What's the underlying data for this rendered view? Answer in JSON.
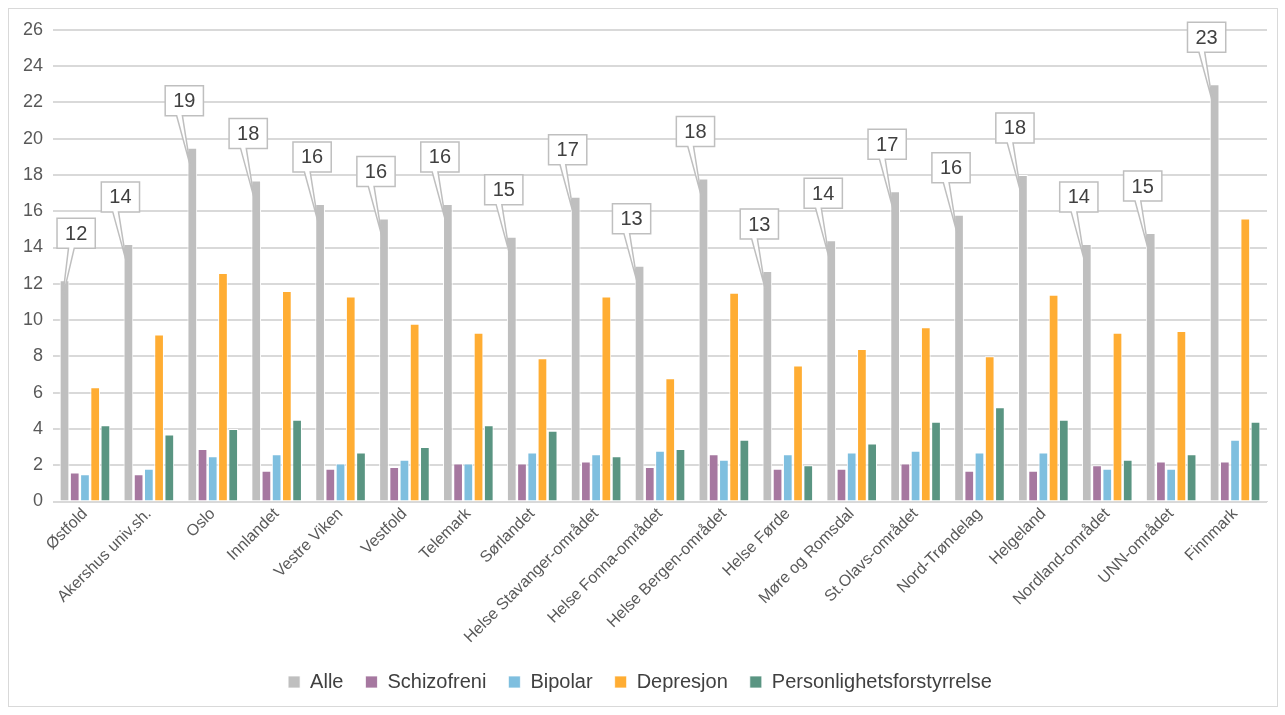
{
  "chart_data": {
    "type": "bar",
    "categories": [
      "Østfold",
      "Akershus univ.sh.",
      "Oslo",
      "Innlandet",
      "Vestre Viken",
      "Vestfold",
      "Telemark",
      "Sørlandet",
      "Helse Stavanger-området",
      "Helse Fonna-området",
      "Helse Bergen-området",
      "Helse Førde",
      "Møre og Romsdal",
      "St.Olavs-området",
      "Nord-Trøndelag",
      "Helgeland",
      "Nordland-området",
      "UNN-området",
      "Finnmark"
    ],
    "series": [
      {
        "name": "Alle",
        "color": "#bfbfbf",
        "values": [
          12.2,
          14.2,
          19.5,
          17.7,
          16.4,
          15.6,
          16.4,
          14.6,
          16.8,
          13.0,
          17.8,
          12.7,
          14.4,
          17.1,
          15.8,
          18.0,
          14.2,
          14.8,
          23.0
        ],
        "value_labels": [
          "12",
          "14",
          "19",
          "18",
          "16",
          "16",
          "16",
          "15",
          "17",
          "13",
          "18",
          "13",
          "14",
          "17",
          "16",
          "18",
          "14",
          "15",
          "23"
        ]
      },
      {
        "name": "Schizofreni",
        "color": "#a678a0",
        "values": [
          1.6,
          1.5,
          2.9,
          1.7,
          1.8,
          1.9,
          2.1,
          2.1,
          2.2,
          1.9,
          2.6,
          1.8,
          1.8,
          2.1,
          1.7,
          1.7,
          2.0,
          2.2,
          2.2
        ]
      },
      {
        "name": "Bipolar",
        "color": "#7fbfdf",
        "values": [
          1.5,
          1.8,
          2.5,
          2.6,
          2.1,
          2.3,
          2.1,
          2.7,
          2.6,
          2.8,
          2.3,
          2.6,
          2.7,
          2.8,
          2.7,
          2.7,
          1.8,
          1.8,
          3.4
        ]
      },
      {
        "name": "Depresjon",
        "color": "#ffad33",
        "values": [
          6.3,
          9.2,
          12.6,
          11.6,
          11.3,
          9.8,
          9.3,
          7.9,
          11.3,
          6.8,
          11.5,
          7.5,
          8.4,
          9.6,
          8.0,
          11.4,
          9.3,
          9.4,
          15.6
        ]
      },
      {
        "name": "Personlighetsforstyrrelse",
        "color": "#5a9582",
        "values": [
          4.2,
          3.7,
          4.0,
          4.5,
          2.7,
          3.0,
          4.2,
          3.9,
          2.5,
          2.9,
          3.4,
          2.0,
          3.2,
          4.4,
          5.2,
          4.5,
          2.3,
          2.6,
          4.4
        ]
      }
    ],
    "ylim": [
      0,
      26
    ],
    "yticks": [
      0,
      2,
      4,
      6,
      8,
      10,
      12,
      14,
      16,
      18,
      20,
      22,
      24,
      26
    ],
    "grid": "y",
    "legend": "bottom"
  }
}
